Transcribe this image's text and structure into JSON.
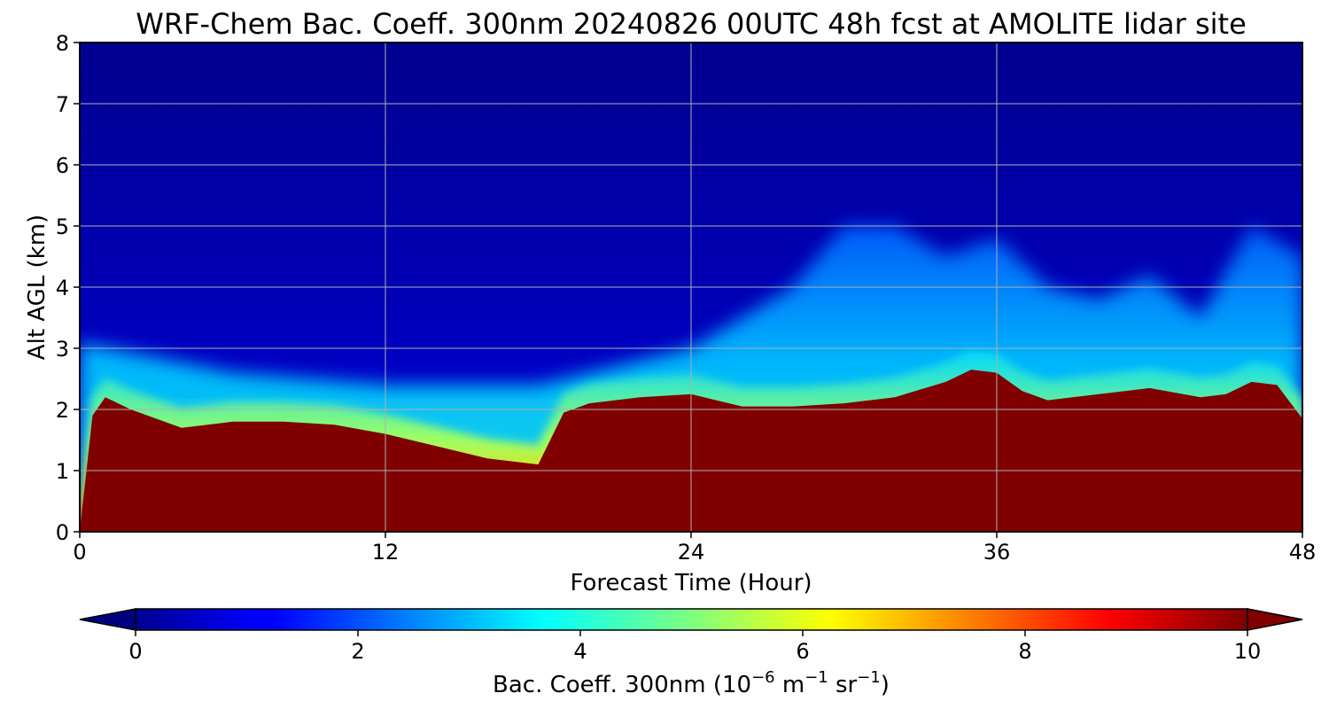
{
  "chart_data": {
    "type": "heatmap",
    "title": "WRF-Chem Bac. Coeff. 300nm  20240826 00UTC 48h fcst at AMOLITE lidar site",
    "xlabel": "Forecast Time (Hour)",
    "ylabel": "Alt AGL (km)",
    "xlim": [
      0,
      48
    ],
    "ylim": [
      0,
      8
    ],
    "xticks": [
      "0",
      "12",
      "24",
      "36",
      "48"
    ],
    "yticks": [
      "0",
      "1",
      "2",
      "3",
      "4",
      "5",
      "6",
      "7",
      "8"
    ],
    "grid": true,
    "colorbar": {
      "label_main": "Bac. Coeff. 300nm  (10",
      "label_exp1": "−6",
      "label_unit1": " m",
      "label_exp2": "−1",
      "label_unit2": " sr",
      "label_exp3": "−1",
      "label_close": ")",
      "range": [
        0,
        10
      ],
      "ticks": [
        "0",
        "2",
        "4",
        "6",
        "8",
        "10"
      ],
      "extend": "both",
      "colormap": "jet"
    },
    "boundary_layer_top_km": {
      "hour": [
        0,
        0.5,
        1,
        2,
        4,
        6,
        8,
        10,
        12,
        14,
        16,
        18,
        19,
        20,
        22,
        24,
        26,
        28,
        30,
        32,
        34,
        35,
        36,
        37,
        38,
        40,
        42,
        44,
        45,
        46,
        47,
        48
      ],
      "height": [
        0,
        1.9,
        2.2,
        2.0,
        1.7,
        1.8,
        1.8,
        1.75,
        1.6,
        1.4,
        1.2,
        1.1,
        1.95,
        2.1,
        2.2,
        2.25,
        2.05,
        2.05,
        2.1,
        2.2,
        2.45,
        2.65,
        2.6,
        2.3,
        2.15,
        2.25,
        2.35,
        2.2,
        2.25,
        2.45,
        2.4,
        1.85
      ]
    },
    "aerosol_layer_top_km": {
      "hour": [
        0,
        6,
        12,
        18,
        20,
        24,
        28,
        30,
        32,
        34,
        36,
        38,
        40,
        42,
        44,
        46,
        48
      ],
      "height": [
        3.1,
        2.6,
        2.4,
        2.4,
        2.6,
        3.0,
        4.0,
        5.0,
        5.0,
        4.5,
        4.8,
        4.0,
        3.8,
        4.2,
        3.5,
        5.0,
        4.5
      ]
    }
  }
}
